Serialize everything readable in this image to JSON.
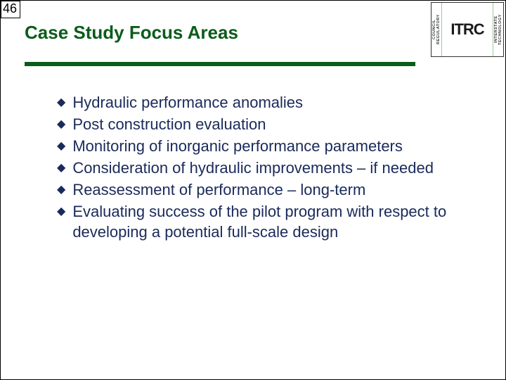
{
  "page_number": "46",
  "title": "Case Study Focus Areas",
  "logo": {
    "left_top": "COUNCIL",
    "left_bottom": "REGULATORY",
    "center": "ITRC",
    "right_top": "INTERSTATE",
    "right_bottom": "TECHNOLOGY"
  },
  "bullets": [
    "Hydraulic performance anomalies",
    "Post construction evaluation",
    "Monitoring of inorganic performance parameters",
    "Consideration of hydraulic improvements – if needed",
    "Reassessment of performance – long-term",
    "Evaluating success of the pilot program with respect to developing a potential full-scale design"
  ],
  "colors": {
    "title_color": "#0a5c1a",
    "rule_color": "#0a5c1a",
    "bullet_text_color": "#1a2a5a",
    "bullet_marker_color": "#1a2a5a",
    "background": "#ffffff"
  }
}
